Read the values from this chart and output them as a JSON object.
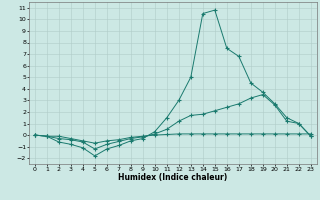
{
  "xlabel": "Humidex (Indice chaleur)",
  "bg_color": "#cce8e4",
  "grid_color": "#b0ccc8",
  "line_color": "#1a7a6e",
  "xlim": [
    -0.5,
    23.5
  ],
  "ylim": [
    -2.5,
    11.5
  ],
  "xticks": [
    0,
    1,
    2,
    3,
    4,
    5,
    6,
    7,
    8,
    9,
    10,
    11,
    12,
    13,
    14,
    15,
    16,
    17,
    18,
    19,
    20,
    21,
    22,
    23
  ],
  "yticks": [
    -2,
    -1,
    0,
    1,
    2,
    3,
    4,
    5,
    6,
    7,
    8,
    9,
    10,
    11
  ],
  "line1_x": [
    0,
    1,
    2,
    3,
    4,
    5,
    6,
    7,
    8,
    9,
    10,
    11,
    12,
    13,
    14,
    15,
    16,
    17,
    18,
    19,
    20,
    21,
    22,
    23
  ],
  "line1_y": [
    0.0,
    -0.1,
    -0.1,
    -0.3,
    -0.5,
    -0.7,
    -0.5,
    -0.4,
    -0.2,
    -0.1,
    0.0,
    0.05,
    0.1,
    0.1,
    0.1,
    0.1,
    0.1,
    0.1,
    0.1,
    0.1,
    0.1,
    0.1,
    0.1,
    0.1
  ],
  "line2_x": [
    0,
    1,
    2,
    3,
    4,
    5,
    6,
    7,
    8,
    9,
    10,
    11,
    12,
    13,
    14,
    15,
    16,
    17,
    18,
    19,
    20,
    21,
    22,
    23
  ],
  "line2_y": [
    0.0,
    -0.1,
    -0.6,
    -0.8,
    -1.1,
    -1.8,
    -1.2,
    -0.9,
    -0.5,
    -0.3,
    0.3,
    1.5,
    3.0,
    5.0,
    10.5,
    10.8,
    7.5,
    6.8,
    4.5,
    3.7,
    2.7,
    1.5,
    1.0,
    -0.1
  ],
  "line3_x": [
    0,
    1,
    2,
    3,
    4,
    5,
    6,
    7,
    8,
    9,
    10,
    11,
    12,
    13,
    14,
    15,
    16,
    17,
    18,
    19,
    20,
    21,
    22,
    23
  ],
  "line3_y": [
    0.0,
    -0.1,
    -0.3,
    -0.4,
    -0.6,
    -1.2,
    -0.8,
    -0.55,
    -0.3,
    -0.15,
    0.1,
    0.5,
    1.2,
    1.7,
    1.8,
    2.1,
    2.4,
    2.7,
    3.2,
    3.5,
    2.6,
    1.2,
    1.0,
    -0.1
  ]
}
